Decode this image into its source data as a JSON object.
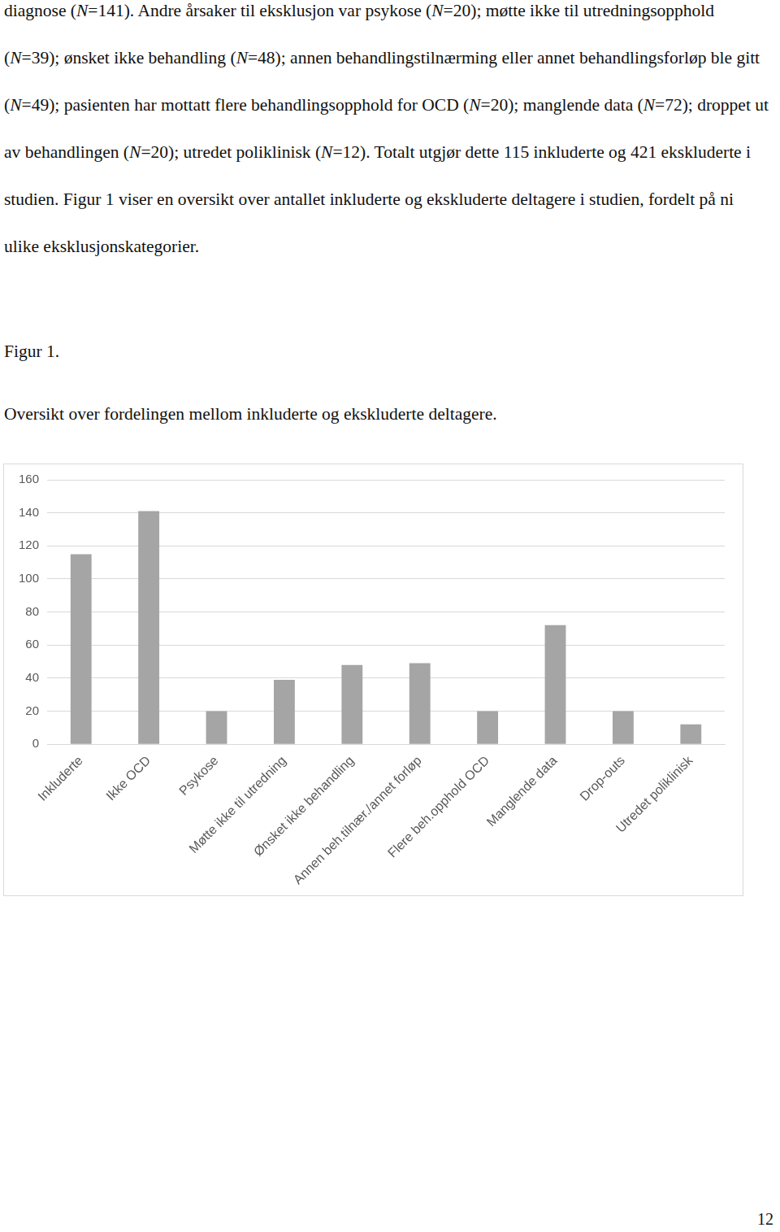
{
  "paragraph": "diagnose (N=141). Andre årsaker til eksklusjon var psykose (N=20); møtte ikke til utredningsopphold (N=39); ønsket ikke behandling (N=48); annen behandlingstilnærming eller annet behandlingsforløp ble gitt (N=49); pasienten har mottatt flere behandlingsopphold for OCD (N=20); manglende data (N=72); droppet ut av behandlingen (N=20); utredet poliklinisk (N=12). Totalt utgjør dette 115 inkluderte og 421 ekskluderte i studien. Figur 1 viser en oversikt over antallet inkluderte og ekskluderte deltagere i studien, fordelt på ni ulike eksklusjonskategorier.",
  "figure": {
    "label": "Figur 1.",
    "caption": "Oversikt over fordelingen mellom inkluderte og ekskluderte deltagere."
  },
  "chart_data": {
    "type": "bar",
    "categories": [
      "Inkluderte",
      "Ikke OCD",
      "Psykose",
      "Møtte ikke til utredning",
      "Ønsket ikke behandling",
      "Annen beh.tilnær./annet forløp",
      "Flere beh.opphold OCD",
      "Manglende data",
      "Drop-outs",
      "Utredet poliklinisk"
    ],
    "values": [
      115,
      141,
      20,
      39,
      48,
      49,
      20,
      72,
      20,
      12
    ],
    "color": "#a5a5a5",
    "ylim": [
      0,
      160
    ],
    "yticks": [
      0,
      20,
      40,
      60,
      80,
      100,
      120,
      140,
      160
    ],
    "grid": true
  },
  "page_number": 12
}
